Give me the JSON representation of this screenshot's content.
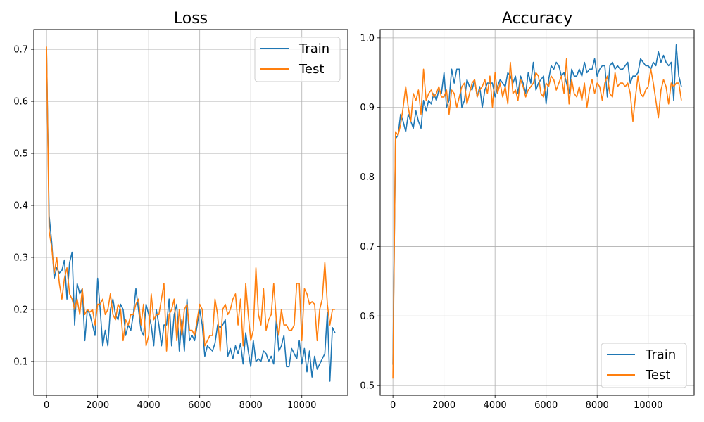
{
  "chart_data": [
    {
      "type": "line",
      "title": "Loss",
      "xlabel": "",
      "ylabel": "",
      "xlim": [
        -500,
        11800
      ],
      "ylim": [
        0.035,
        0.738
      ],
      "xticks": [
        0,
        2000,
        4000,
        6000,
        8000,
        10000
      ],
      "xtick_labels": [
        "0",
        "2000",
        "4000",
        "6000",
        "8000",
        "10000"
      ],
      "yticks": [
        0.1,
        0.2,
        0.3,
        0.4,
        0.5,
        0.6,
        0.7
      ],
      "ytick_labels": [
        "0.1",
        "0.2",
        "0.3",
        "0.4",
        "0.5",
        "0.6",
        "0.7"
      ],
      "grid": true,
      "legend": "top-right",
      "series": [
        {
          "name": "Train",
          "color": "#1f77b4",
          "x": [
            0,
            100,
            200,
            300,
            400,
            500,
            600,
            700,
            800,
            900,
            1000,
            1100,
            1200,
            1300,
            1400,
            1500,
            1600,
            1700,
            1800,
            1900,
            2000,
            2100,
            2200,
            2300,
            2400,
            2500,
            2600,
            2700,
            2800,
            2900,
            3000,
            3100,
            3200,
            3300,
            3400,
            3500,
            3600,
            3700,
            3800,
            3900,
            4000,
            4100,
            4200,
            4300,
            4400,
            4500,
            4600,
            4700,
            4800,
            4900,
            5000,
            5100,
            5200,
            5300,
            5400,
            5500,
            5600,
            5700,
            5800,
            5900,
            6000,
            6100,
            6200,
            6300,
            6400,
            6500,
            6600,
            6700,
            6800,
            6900,
            7000,
            7100,
            7200,
            7300,
            7400,
            7500,
            7600,
            7700,
            7800,
            7900,
            8000,
            8100,
            8200,
            8300,
            8400,
            8500,
            8600,
            8700,
            8800,
            8900,
            9000,
            9100,
            9200,
            9300,
            9400,
            9500,
            9600,
            9700,
            9800,
            9900,
            10000,
            10100,
            10200,
            10300,
            10400,
            10500,
            10600,
            10700,
            10800,
            10900,
            11000,
            11100,
            11200,
            11300
          ],
          "values": [
            0.7,
            0.38,
            0.33,
            0.26,
            0.28,
            0.27,
            0.275,
            0.295,
            0.22,
            0.29,
            0.31,
            0.17,
            0.25,
            0.23,
            0.24,
            0.14,
            0.2,
            0.19,
            0.17,
            0.15,
            0.26,
            0.2,
            0.13,
            0.16,
            0.13,
            0.2,
            0.22,
            0.19,
            0.18,
            0.21,
            0.2,
            0.15,
            0.17,
            0.16,
            0.19,
            0.24,
            0.2,
            0.16,
            0.15,
            0.21,
            0.19,
            0.17,
            0.13,
            0.2,
            0.17,
            0.13,
            0.17,
            0.17,
            0.22,
            0.13,
            0.19,
            0.21,
            0.12,
            0.18,
            0.12,
            0.22,
            0.14,
            0.15,
            0.14,
            0.17,
            0.2,
            0.17,
            0.11,
            0.13,
            0.125,
            0.12,
            0.135,
            0.17,
            0.165,
            0.17,
            0.18,
            0.11,
            0.125,
            0.105,
            0.13,
            0.115,
            0.135,
            0.095,
            0.155,
            0.12,
            0.09,
            0.14,
            0.1,
            0.105,
            0.1,
            0.12,
            0.115,
            0.1,
            0.11,
            0.095,
            0.18,
            0.12,
            0.13,
            0.15,
            0.09,
            0.09,
            0.125,
            0.115,
            0.105,
            0.14,
            0.095,
            0.125,
            0.08,
            0.12,
            0.07,
            0.11,
            0.085,
            0.095,
            0.105,
            0.115,
            0.195,
            0.062,
            0.165,
            0.155
          ]
        },
        {
          "name": "Test",
          "color": "#ff7f0e",
          "x": [
            0,
            100,
            200,
            300,
            400,
            500,
            600,
            700,
            800,
            900,
            1000,
            1100,
            1200,
            1300,
            1400,
            1500,
            1600,
            1700,
            1800,
            1900,
            2000,
            2100,
            2200,
            2300,
            2400,
            2500,
            2600,
            2700,
            2800,
            2900,
            3000,
            3100,
            3200,
            3300,
            3400,
            3500,
            3600,
            3700,
            3800,
            3900,
            4000,
            4100,
            4200,
            4300,
            4400,
            4500,
            4600,
            4700,
            4800,
            4900,
            5000,
            5100,
            5200,
            5300,
            5400,
            5500,
            5600,
            5700,
            5800,
            5900,
            6000,
            6100,
            6200,
            6300,
            6400,
            6500,
            6600,
            6700,
            6800,
            6900,
            7000,
            7100,
            7200,
            7300,
            7400,
            7500,
            7600,
            7700,
            7800,
            7900,
            8000,
            8100,
            8200,
            8300,
            8400,
            8500,
            8600,
            8700,
            8800,
            8900,
            9000,
            9100,
            9200,
            9300,
            9400,
            9500,
            9600,
            9700,
            9800,
            9900,
            10000,
            10100,
            10200,
            10300,
            10400,
            10500,
            10600,
            10700,
            10800,
            10900,
            11000,
            11100,
            11200,
            11300
          ],
          "values": [
            0.705,
            0.35,
            0.32,
            0.27,
            0.3,
            0.25,
            0.22,
            0.26,
            0.28,
            0.23,
            0.22,
            0.2,
            0.22,
            0.19,
            0.24,
            0.19,
            0.2,
            0.195,
            0.2,
            0.17,
            0.21,
            0.21,
            0.22,
            0.19,
            0.2,
            0.23,
            0.19,
            0.18,
            0.21,
            0.2,
            0.14,
            0.18,
            0.17,
            0.19,
            0.19,
            0.21,
            0.22,
            0.17,
            0.21,
            0.13,
            0.15,
            0.23,
            0.18,
            0.19,
            0.19,
            0.22,
            0.25,
            0.12,
            0.19,
            0.2,
            0.22,
            0.14,
            0.2,
            0.15,
            0.2,
            0.21,
            0.16,
            0.16,
            0.15,
            0.18,
            0.21,
            0.2,
            0.13,
            0.14,
            0.15,
            0.15,
            0.22,
            0.19,
            0.12,
            0.2,
            0.21,
            0.19,
            0.2,
            0.22,
            0.23,
            0.17,
            0.22,
            0.13,
            0.25,
            0.19,
            0.14,
            0.16,
            0.28,
            0.19,
            0.17,
            0.24,
            0.16,
            0.18,
            0.19,
            0.25,
            0.18,
            0.15,
            0.2,
            0.17,
            0.17,
            0.16,
            0.16,
            0.17,
            0.25,
            0.25,
            0.14,
            0.24,
            0.23,
            0.21,
            0.215,
            0.21,
            0.14,
            0.2,
            0.22,
            0.29,
            0.21,
            0.17,
            0.2,
            0.2
          ]
        }
      ]
    },
    {
      "type": "line",
      "title": "Accuracy",
      "xlabel": "",
      "ylabel": "",
      "xlim": [
        -500,
        11800
      ],
      "ylim": [
        0.486,
        1.012
      ],
      "xticks": [
        0,
        2000,
        4000,
        6000,
        8000,
        10000
      ],
      "xtick_labels": [
        "0",
        "2000",
        "4000",
        "6000",
        "8000",
        "10000"
      ],
      "yticks": [
        0.5,
        0.6,
        0.7,
        0.8,
        0.9,
        1.0
      ],
      "ytick_labels": [
        "0.5",
        "0.6",
        "0.7",
        "0.8",
        "0.9",
        "1.0"
      ],
      "grid": true,
      "legend": "bottom-right",
      "series": [
        {
          "name": "Train",
          "color": "#1f77b4",
          "x": [
            0,
            100,
            200,
            300,
            400,
            500,
            600,
            700,
            800,
            900,
            1000,
            1100,
            1200,
            1300,
            1400,
            1500,
            1600,
            1700,
            1800,
            1900,
            2000,
            2100,
            2200,
            2300,
            2400,
            2500,
            2600,
            2700,
            2800,
            2900,
            3000,
            3100,
            3200,
            3300,
            3400,
            3500,
            3600,
            3700,
            3800,
            3900,
            4000,
            4100,
            4200,
            4300,
            4400,
            4500,
            4600,
            4700,
            4800,
            4900,
            5000,
            5100,
            5200,
            5300,
            5400,
            5500,
            5600,
            5700,
            5800,
            5900,
            6000,
            6100,
            6200,
            6300,
            6400,
            6500,
            6600,
            6700,
            6800,
            6900,
            7000,
            7100,
            7200,
            7300,
            7400,
            7500,
            7600,
            7700,
            7800,
            7900,
            8000,
            8100,
            8200,
            8300,
            8400,
            8500,
            8600,
            8700,
            8800,
            8900,
            9000,
            9100,
            9200,
            9300,
            9400,
            9500,
            9600,
            9700,
            9800,
            9900,
            10000,
            10100,
            10200,
            10300,
            10400,
            10500,
            10600,
            10700,
            10800,
            10900,
            11000,
            11100,
            11200,
            11300
          ],
          "values": [
            0.53,
            0.855,
            0.86,
            0.89,
            0.88,
            0.865,
            0.89,
            0.88,
            0.87,
            0.895,
            0.88,
            0.87,
            0.91,
            0.895,
            0.91,
            0.905,
            0.92,
            0.91,
            0.925,
            0.92,
            0.95,
            0.9,
            0.91,
            0.955,
            0.935,
            0.955,
            0.955,
            0.9,
            0.91,
            0.94,
            0.93,
            0.925,
            0.94,
            0.915,
            0.93,
            0.9,
            0.925,
            0.935,
            0.935,
            0.935,
            0.915,
            0.93,
            0.94,
            0.935,
            0.93,
            0.95,
            0.945,
            0.935,
            0.945,
            0.92,
            0.945,
            0.935,
            0.92,
            0.95,
            0.935,
            0.965,
            0.925,
            0.935,
            0.94,
            0.945,
            0.905,
            0.94,
            0.96,
            0.955,
            0.965,
            0.96,
            0.945,
            0.95,
            0.935,
            0.92,
            0.955,
            0.945,
            0.945,
            0.955,
            0.945,
            0.965,
            0.95,
            0.955,
            0.955,
            0.97,
            0.945,
            0.955,
            0.96,
            0.96,
            0.915,
            0.96,
            0.965,
            0.955,
            0.96,
            0.955,
            0.955,
            0.96,
            0.965,
            0.935,
            0.945,
            0.945,
            0.95,
            0.97,
            0.965,
            0.96,
            0.96,
            0.955,
            0.965,
            0.96,
            0.98,
            0.965,
            0.975,
            0.965,
            0.96,
            0.965,
            0.91,
            0.99,
            0.945,
            0.93
          ]
        },
        {
          "name": "Test",
          "color": "#ff7f0e",
          "x": [
            0,
            100,
            200,
            300,
            400,
            500,
            600,
            700,
            800,
            900,
            1000,
            1100,
            1200,
            1300,
            1400,
            1500,
            1600,
            1700,
            1800,
            1900,
            2000,
            2100,
            2200,
            2300,
            2400,
            2500,
            2600,
            2700,
            2800,
            2900,
            3000,
            3100,
            3200,
            3300,
            3400,
            3500,
            3600,
            3700,
            3800,
            3900,
            4000,
            4100,
            4200,
            4300,
            4400,
            4500,
            4600,
            4700,
            4800,
            4900,
            5000,
            5100,
            5200,
            5300,
            5400,
            5500,
            5600,
            5700,
            5800,
            5900,
            6000,
            6100,
            6200,
            6300,
            6400,
            6500,
            6600,
            6700,
            6800,
            6900,
            7000,
            7100,
            7200,
            7300,
            7400,
            7500,
            7600,
            7700,
            7800,
            7900,
            8000,
            8100,
            8200,
            8300,
            8400,
            8500,
            8600,
            8700,
            8800,
            8900,
            9000,
            9100,
            9200,
            9300,
            9400,
            9500,
            9600,
            9700,
            9800,
            9900,
            10000,
            10100,
            10200,
            10300,
            10400,
            10500,
            10600,
            10700,
            10800,
            10900,
            11000,
            11100,
            11200,
            11300
          ],
          "values": [
            0.51,
            0.865,
            0.86,
            0.875,
            0.9,
            0.93,
            0.9,
            0.88,
            0.92,
            0.91,
            0.925,
            0.89,
            0.955,
            0.91,
            0.92,
            0.925,
            0.915,
            0.92,
            0.93,
            0.915,
            0.915,
            0.925,
            0.89,
            0.925,
            0.92,
            0.9,
            0.915,
            0.93,
            0.935,
            0.905,
            0.92,
            0.935,
            0.94,
            0.915,
            0.925,
            0.93,
            0.94,
            0.92,
            0.945,
            0.9,
            0.95,
            0.92,
            0.935,
            0.915,
            0.93,
            0.905,
            0.965,
            0.92,
            0.925,
            0.91,
            0.94,
            0.93,
            0.915,
            0.925,
            0.93,
            0.935,
            0.95,
            0.945,
            0.92,
            0.915,
            0.935,
            0.93,
            0.945,
            0.94,
            0.925,
            0.935,
            0.945,
            0.92,
            0.97,
            0.905,
            0.94,
            0.92,
            0.915,
            0.93,
            0.91,
            0.935,
            0.9,
            0.925,
            0.94,
            0.92,
            0.935,
            0.93,
            0.91,
            0.935,
            0.945,
            0.92,
            0.915,
            0.95,
            0.93,
            0.935,
            0.935,
            0.93,
            0.935,
            0.92,
            0.88,
            0.915,
            0.945,
            0.92,
            0.915,
            0.925,
            0.93,
            0.955,
            0.935,
            0.91,
            0.885,
            0.925,
            0.94,
            0.93,
            0.905,
            0.935,
            0.93,
            0.935,
            0.935,
            0.91
          ]
        }
      ]
    }
  ]
}
